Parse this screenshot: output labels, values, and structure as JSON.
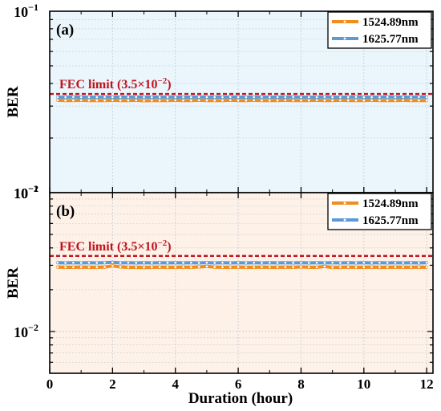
{
  "chart_data": [
    {
      "type": "line",
      "panel_label": "(a)",
      "ylabel": "BER",
      "yscale": "log",
      "ylim": [
        0.01,
        0.1
      ],
      "y_ticks": [
        {
          "v": 0.1,
          "base": "10",
          "exp": "−1"
        },
        {
          "v": 0.01,
          "base": "10",
          "exp": "−2"
        }
      ],
      "x": [
        0.25,
        0.5,
        0.75,
        1.0,
        1.25,
        1.5,
        1.75,
        2.0,
        2.25,
        2.5,
        2.75,
        3.0,
        3.25,
        3.5,
        3.75,
        4.0,
        4.25,
        4.5,
        4.75,
        5.0,
        5.25,
        5.5,
        5.75,
        6.0,
        6.25,
        6.5,
        6.75,
        7.0,
        7.25,
        7.5,
        7.75,
        8.0,
        8.25,
        8.5,
        8.75,
        9.0,
        9.25,
        9.5,
        9.75,
        10.0,
        10.25,
        10.5,
        10.75,
        11.0,
        11.25,
        11.5,
        11.75,
        12.0
      ],
      "series": [
        {
          "name": "1524.89nm",
          "color": "#f28c1c",
          "values": [
            0.0323,
            0.0322,
            0.0322,
            0.0323,
            0.0322,
            0.0322,
            0.0322,
            0.0323,
            0.0322,
            0.0322,
            0.0323,
            0.0321,
            0.0322,
            0.0322,
            0.0322,
            0.0323,
            0.0322,
            0.0322,
            0.0323,
            0.0322,
            0.0322,
            0.0322,
            0.0323,
            0.0322,
            0.0322,
            0.0323,
            0.0322,
            0.0322,
            0.0322,
            0.0323,
            0.0322,
            0.0322,
            0.0322,
            0.0323,
            0.0322,
            0.0322,
            0.0323,
            0.0322,
            0.0322,
            0.0322,
            0.0323,
            0.0322,
            0.0322,
            0.0322,
            0.0323,
            0.0322,
            0.0322,
            0.0322
          ]
        },
        {
          "name": "1625.77nm",
          "color": "#5b9bd5",
          "values": [
            0.0336,
            0.0336,
            0.0337,
            0.0336,
            0.0336,
            0.0336,
            0.0337,
            0.0336,
            0.0336,
            0.0336,
            0.0337,
            0.0336,
            0.0336,
            0.0336,
            0.0337,
            0.0336,
            0.0336,
            0.0336,
            0.0337,
            0.0336,
            0.0336,
            0.0336,
            0.0337,
            0.0336,
            0.0336,
            0.0336,
            0.0337,
            0.0336,
            0.0336,
            0.0336,
            0.0337,
            0.0336,
            0.0336,
            0.0336,
            0.0337,
            0.0336,
            0.0336,
            0.0336,
            0.0337,
            0.0336,
            0.0336,
            0.0336,
            0.0337,
            0.0336,
            0.0336,
            0.0336,
            0.0337,
            0.0336
          ]
        }
      ],
      "fec": {
        "value": 0.035,
        "label_prefix": "FEC limit (3.5×10",
        "label_exp": "−2",
        "label_suffix": ")",
        "color": "#c0141c"
      },
      "background": "#eaf5fc",
      "legend_position": "top-right",
      "grid": true
    },
    {
      "type": "line",
      "panel_label": "(b)",
      "ylabel": "BER",
      "yscale": "log",
      "ylim": [
        0.005,
        0.1
      ],
      "y_ticks": [
        {
          "v": 0.1,
          "base": "10",
          "exp": "−1"
        },
        {
          "v": 0.01,
          "base": "10",
          "exp": "−2"
        }
      ],
      "x": [
        0.25,
        0.5,
        0.75,
        1.0,
        1.25,
        1.5,
        1.75,
        2.0,
        2.25,
        2.5,
        2.75,
        3.0,
        3.25,
        3.5,
        3.75,
        4.0,
        4.25,
        4.5,
        4.75,
        5.0,
        5.25,
        5.5,
        5.75,
        6.0,
        6.25,
        6.5,
        6.75,
        7.0,
        7.25,
        7.5,
        7.75,
        8.0,
        8.25,
        8.5,
        8.75,
        9.0,
        9.25,
        9.5,
        9.75,
        10.0,
        10.25,
        10.5,
        10.75,
        11.0,
        11.25,
        11.5,
        11.75,
        12.0
      ],
      "series": [
        {
          "name": "1524.89nm",
          "color": "#f28c1c",
          "values": [
            0.0291,
            0.029,
            0.029,
            0.0291,
            0.029,
            0.029,
            0.0291,
            0.0297,
            0.0292,
            0.029,
            0.029,
            0.0289,
            0.029,
            0.0291,
            0.029,
            0.029,
            0.0291,
            0.029,
            0.0292,
            0.0294,
            0.0291,
            0.029,
            0.029,
            0.0291,
            0.029,
            0.029,
            0.0291,
            0.029,
            0.029,
            0.0291,
            0.029,
            0.0292,
            0.029,
            0.029,
            0.0294,
            0.0289,
            0.029,
            0.0291,
            0.029,
            0.029,
            0.0291,
            0.029,
            0.029,
            0.0291,
            0.029,
            0.029,
            0.0291,
            0.029
          ]
        },
        {
          "name": "1625.77nm",
          "color": "#5b9bd5",
          "values": [
            0.0313,
            0.0312,
            0.0313,
            0.0312,
            0.0313,
            0.0312,
            0.0313,
            0.0315,
            0.0312,
            0.0313,
            0.0312,
            0.0313,
            0.0312,
            0.0313,
            0.0312,
            0.0313,
            0.0312,
            0.0313,
            0.0312,
            0.0313,
            0.0312,
            0.0313,
            0.0312,
            0.0313,
            0.0312,
            0.0313,
            0.0312,
            0.0313,
            0.0312,
            0.0313,
            0.0312,
            0.0313,
            0.0312,
            0.0313,
            0.0312,
            0.0313,
            0.0312,
            0.0313,
            0.0312,
            0.0313,
            0.0312,
            0.0313,
            0.0312,
            0.0313,
            0.0312,
            0.0313,
            0.0312,
            0.0313
          ]
        }
      ],
      "fec": {
        "value": 0.035,
        "label_prefix": "FEC limit (3.5×10",
        "label_exp": "−2",
        "label_suffix": ")",
        "color": "#c0141c"
      },
      "background": "#fdf1e8",
      "legend_position": "top-right",
      "grid": true
    }
  ],
  "x_axis": {
    "label": "Duration (hour)",
    "xlim": [
      0,
      12.2
    ],
    "ticks": [
      0,
      2,
      4,
      6,
      8,
      10,
      12
    ],
    "tick_labels": [
      "0",
      "2",
      "4",
      "6",
      "8",
      "10",
      "12"
    ]
  }
}
